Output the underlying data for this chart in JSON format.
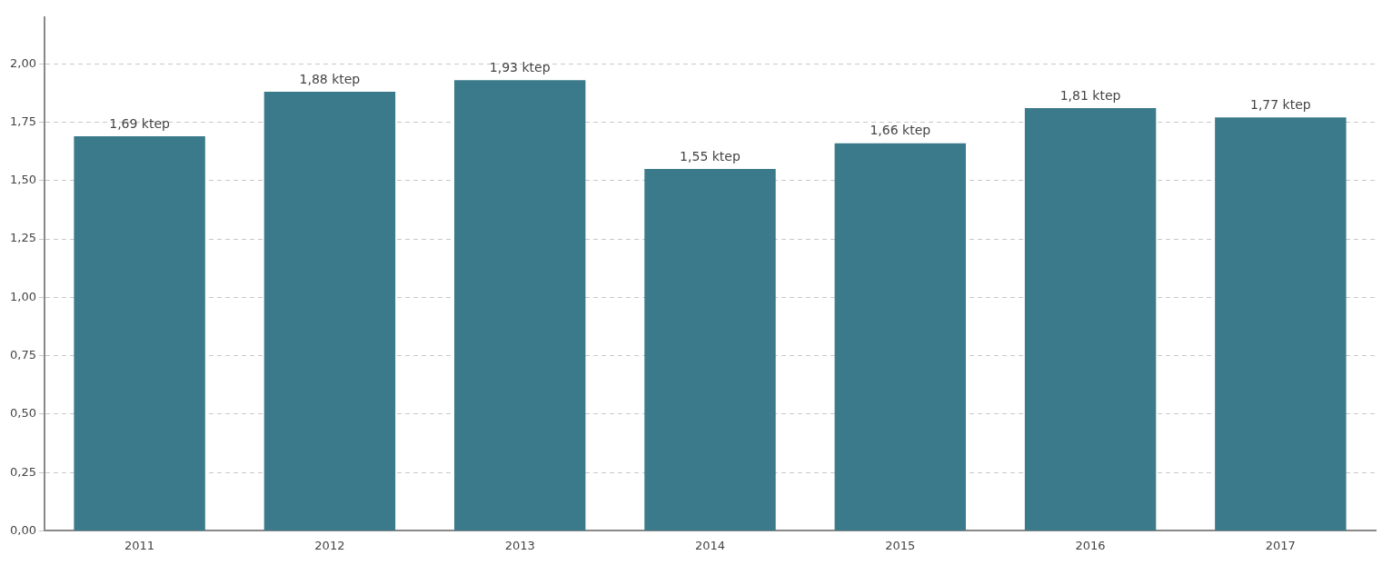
{
  "chart_data": {
    "type": "bar",
    "categories": [
      "2011",
      "2012",
      "2013",
      "2014",
      "2015",
      "2016",
      "2017"
    ],
    "values": [
      1.69,
      1.88,
      1.93,
      1.55,
      1.66,
      1.81,
      1.77
    ],
    "color": "#3b7a8a",
    "value_labels": [
      "1,69 ktep",
      "1,88 ktep",
      "1,93 ktep",
      "1,55 ktep",
      "1,66 ktep",
      "1,81 ktep",
      "1,77 ktep"
    ],
    "ylim": [
      0,
      2.2
    ],
    "yticks": [
      {
        "value": 0,
        "label": "0,00"
      },
      {
        "value": 0.25,
        "label": "0,25"
      },
      {
        "value": 0.5,
        "label": "0,50"
      },
      {
        "value": 0.75,
        "label": "0,75"
      },
      {
        "value": 1,
        "label": "1,00"
      },
      {
        "value": 1.25,
        "label": "1,25"
      },
      {
        "value": 1.5,
        "label": "1,50"
      },
      {
        "value": 1.75,
        "label": "1,75"
      },
      {
        "value": 2,
        "label": "2,00"
      }
    ],
    "grid": "y"
  }
}
